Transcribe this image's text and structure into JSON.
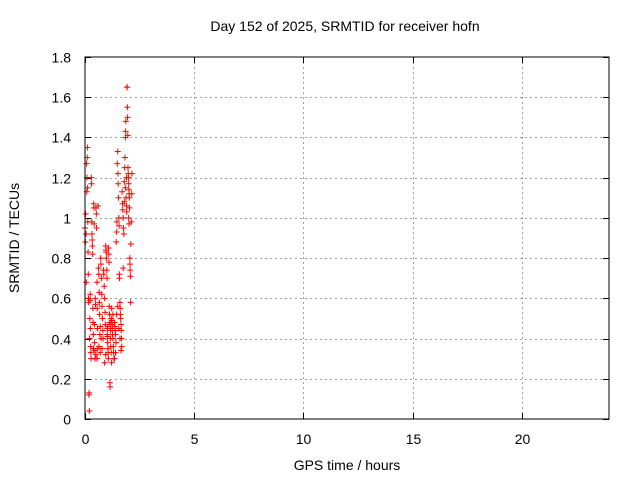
{
  "chart_data": {
    "type": "scatter",
    "title": "Day 152 of 2025, SRMTID for receiver hofn",
    "xlabel": "GPS time / hours",
    "ylabel": "SRMTID / TECUs",
    "xlim": [
      0,
      24
    ],
    "ylim": [
      0,
      1.8
    ],
    "xticks": [
      "0",
      "5",
      "10",
      "15",
      "20"
    ],
    "xtick_values": [
      0,
      5,
      10,
      15,
      20
    ],
    "yticks": [
      "0",
      "0.2",
      "0.4",
      "0.6",
      "0.8",
      "1",
      "1.2",
      "1.4",
      "1.6",
      "1.8"
    ],
    "ytick_values": [
      0,
      0.2,
      0.4,
      0.6,
      0.8,
      1.0,
      1.2,
      1.4,
      1.6,
      1.8
    ],
    "grid": true,
    "marker": "+",
    "color": "#ff0000",
    "series": [
      {
        "name": "SRMTID",
        "points": [
          [
            0.0,
            0.95
          ],
          [
            0.02,
            0.88
          ],
          [
            0.03,
            1.02
          ],
          [
            0.05,
            0.92
          ],
          [
            0.06,
            0.68
          ],
          [
            0.07,
            1.27
          ],
          [
            0.08,
            1.13
          ],
          [
            0.09,
            1.2
          ],
          [
            0.1,
            1.3
          ],
          [
            0.11,
            1.35
          ],
          [
            0.12,
            1.15
          ],
          [
            0.13,
            0.98
          ],
          [
            0.14,
            0.83
          ],
          [
            0.15,
            0.72
          ],
          [
            0.16,
            0.6
          ],
          [
            0.17,
            0.58
          ],
          [
            0.18,
            0.12
          ],
          [
            0.19,
            0.13
          ],
          [
            0.2,
            0.04
          ],
          [
            0.21,
            0.4
          ],
          [
            0.22,
            0.5
          ],
          [
            0.23,
            0.59
          ],
          [
            0.24,
            0.62
          ],
          [
            0.25,
            0.45
          ],
          [
            0.26,
            0.36
          ],
          [
            0.27,
            0.33
          ],
          [
            0.28,
            0.3
          ],
          [
            0.29,
            1.2
          ],
          [
            0.3,
            1.17
          ],
          [
            0.31,
            0.98
          ],
          [
            0.32,
            0.92
          ],
          [
            0.33,
            0.89
          ],
          [
            0.34,
            0.86
          ],
          [
            0.35,
            0.82
          ],
          [
            0.36,
            0.55
          ],
          [
            0.37,
            0.48
          ],
          [
            0.38,
            0.42
          ],
          [
            0.39,
            0.35
          ],
          [
            0.4,
            1.07
          ],
          [
            0.41,
            1.05
          ],
          [
            0.42,
            0.97
          ],
          [
            0.43,
            0.47
          ],
          [
            0.44,
            0.38
          ],
          [
            0.45,
            0.34
          ],
          [
            0.46,
            0.3
          ],
          [
            0.47,
            0.6
          ],
          [
            0.48,
            0.57
          ],
          [
            0.5,
            1.05
          ],
          [
            0.52,
            1.02
          ],
          [
            0.53,
            0.95
          ],
          [
            0.55,
            0.68
          ],
          [
            0.56,
            0.55
          ],
          [
            0.57,
            0.45
          ],
          [
            0.58,
            0.35
          ],
          [
            0.6,
            1.06
          ],
          [
            0.62,
            0.75
          ],
          [
            0.63,
            0.72
          ],
          [
            0.65,
            0.63
          ],
          [
            0.66,
            0.58
          ],
          [
            0.67,
            0.52
          ],
          [
            0.68,
            0.42
          ],
          [
            0.7,
            0.33
          ],
          [
            0.72,
            0.8
          ],
          [
            0.73,
            0.77
          ],
          [
            0.75,
            0.7
          ],
          [
            0.77,
            0.62
          ],
          [
            0.78,
            0.56
          ],
          [
            0.8,
            0.5
          ],
          [
            0.82,
            0.44
          ],
          [
            0.83,
            0.4
          ],
          [
            0.85,
            0.74
          ],
          [
            0.86,
            0.72
          ],
          [
            0.88,
            0.66
          ],
          [
            0.9,
            0.6
          ],
          [
            0.92,
            0.53
          ],
          [
            0.93,
            0.47
          ],
          [
            0.95,
            0.86
          ],
          [
            0.96,
            0.84
          ],
          [
            0.97,
            0.83
          ],
          [
            0.98,
            0.8
          ],
          [
            1.0,
            0.74
          ],
          [
            1.01,
            0.7
          ],
          [
            1.02,
            0.45
          ],
          [
            1.03,
            0.41
          ],
          [
            1.04,
            0.38
          ],
          [
            1.05,
            0.35
          ],
          [
            1.06,
            0.33
          ],
          [
            1.07,
            0.3
          ],
          [
            1.08,
            0.85
          ],
          [
            1.09,
            0.82
          ],
          [
            1.1,
            0.78
          ],
          [
            1.11,
            0.56
          ],
          [
            1.12,
            0.52
          ],
          [
            1.13,
            0.48
          ],
          [
            1.14,
            0.18
          ],
          [
            1.15,
            0.16
          ],
          [
            1.16,
            0.4
          ],
          [
            1.17,
            0.44
          ],
          [
            1.18,
            0.47
          ],
          [
            1.2,
            0.5
          ],
          [
            1.22,
            0.55
          ],
          [
            1.23,
            0.49
          ],
          [
            1.25,
            0.45
          ],
          [
            1.26,
            0.42
          ],
          [
            1.28,
            0.4
          ],
          [
            1.3,
            0.36
          ],
          [
            1.31,
            0.33
          ],
          [
            1.33,
            0.3
          ],
          [
            1.35,
            0.48
          ],
          [
            1.37,
            0.46
          ],
          [
            1.38,
            0.44
          ],
          [
            1.4,
            0.42
          ],
          [
            1.42,
            0.38
          ],
          [
            1.43,
            0.88
          ],
          [
            1.45,
            0.93
          ],
          [
            1.46,
            0.98
          ],
          [
            1.48,
            1.27
          ],
          [
            1.5,
            1.33
          ],
          [
            1.51,
            1.22
          ],
          [
            1.52,
            1.17
          ],
          [
            1.53,
            1.1
          ],
          [
            1.55,
            1.0
          ],
          [
            1.56,
            0.96
          ],
          [
            1.57,
            0.72
          ],
          [
            1.58,
            0.7
          ],
          [
            1.6,
            0.58
          ],
          [
            1.61,
            0.55
          ],
          [
            1.62,
            0.52
          ],
          [
            1.63,
            0.5
          ],
          [
            1.65,
            0.47
          ],
          [
            1.66,
            0.44
          ],
          [
            1.67,
            0.4
          ],
          [
            1.68,
            0.36
          ],
          [
            1.7,
            1.13
          ],
          [
            1.72,
            1.07
          ],
          [
            1.73,
            1.04
          ],
          [
            1.75,
            1.0
          ],
          [
            1.76,
            0.95
          ],
          [
            1.78,
            0.92
          ],
          [
            1.8,
            1.18
          ],
          [
            1.82,
            1.25
          ],
          [
            1.83,
            1.3
          ],
          [
            1.85,
            1.4
          ],
          [
            1.86,
            1.43
          ],
          [
            1.87,
            1.48
          ],
          [
            1.88,
            1.1
          ],
          [
            1.9,
            1.06
          ],
          [
            1.91,
            1.03
          ],
          [
            1.92,
            1.65
          ],
          [
            1.93,
            1.65
          ],
          [
            1.94,
            1.55
          ],
          [
            1.95,
            1.5
          ],
          [
            1.96,
            1.41
          ],
          [
            1.97,
            1.25
          ],
          [
            1.98,
            1.22
          ],
          [
            1.99,
            1.2
          ],
          [
            2.0,
            1.17
          ],
          [
            2.01,
            1.14
          ],
          [
            2.02,
            1.12
          ],
          [
            2.03,
            1.1
          ],
          [
            2.04,
            1.05
          ],
          [
            2.05,
            0.8
          ],
          [
            2.06,
            0.77
          ],
          [
            2.07,
            0.74
          ],
          [
            2.08,
            0.71
          ],
          [
            2.09,
            0.58
          ],
          [
            2.1,
            0.87
          ],
          [
            2.12,
            0.98
          ],
          [
            2.14,
            1.12
          ],
          [
            2.15,
            1.22
          ],
          [
            1.02,
            0.42
          ],
          [
            1.05,
            0.46
          ],
          [
            1.18,
            0.36
          ],
          [
            1.2,
            0.33
          ],
          [
            1.22,
            0.28
          ],
          [
            1.25,
            0.47
          ],
          [
            1.28,
            0.52
          ],
          [
            0.95,
            0.32
          ],
          [
            0.9,
            0.28
          ],
          [
            0.78,
            0.35
          ],
          [
            0.74,
            0.4
          ],
          [
            0.7,
            0.46
          ],
          [
            0.64,
            0.36
          ],
          [
            0.55,
            0.3
          ],
          [
            0.5,
            0.32
          ],
          [
            1.35,
            0.3
          ],
          [
            1.4,
            0.33
          ],
          [
            1.45,
            0.52
          ],
          [
            1.5,
            0.56
          ],
          [
            1.55,
            0.45
          ],
          [
            1.6,
            0.4
          ],
          [
            1.65,
            0.34
          ],
          [
            1.75,
            0.75
          ],
          [
            1.8,
            1.08
          ],
          [
            1.85,
            1.15
          ],
          [
            1.9,
            1.2
          ],
          [
            2.0,
            1.0
          ],
          [
            2.02,
            0.97
          ]
        ]
      }
    ]
  }
}
